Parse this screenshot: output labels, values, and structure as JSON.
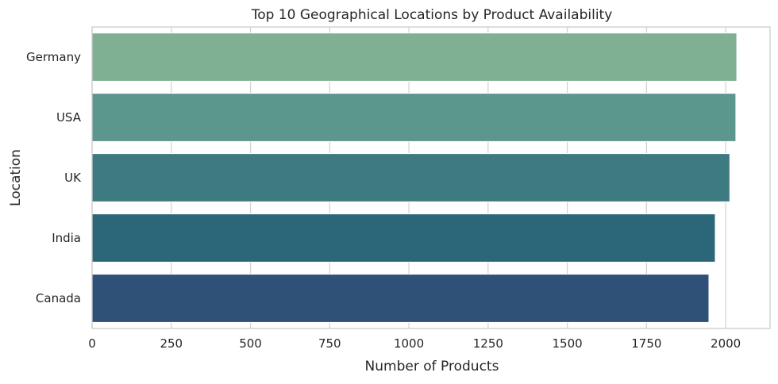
{
  "chart_data": {
    "type": "bar",
    "orientation": "horizontal",
    "title": "Top 10 Geographical Locations by Product Availability",
    "xlabel": "Number of Products",
    "ylabel": "Location",
    "categories": [
      "Germany",
      "USA",
      "UK",
      "India",
      "Canada"
    ],
    "values": [
      2035,
      2032,
      2013,
      1967,
      1947
    ],
    "colors": [
      "#80b094",
      "#5b978c",
      "#3d7b81",
      "#2b6779",
      "#2f5178"
    ],
    "xlim": [
      0,
      2140
    ],
    "xticks": [
      0,
      250,
      500,
      750,
      1000,
      1250,
      1500,
      1750,
      2000
    ],
    "grid": true,
    "grid_axis": "x",
    "background": "#ffffff",
    "grid_color": "#d3d3d3",
    "frame_color": "#cccccc"
  }
}
